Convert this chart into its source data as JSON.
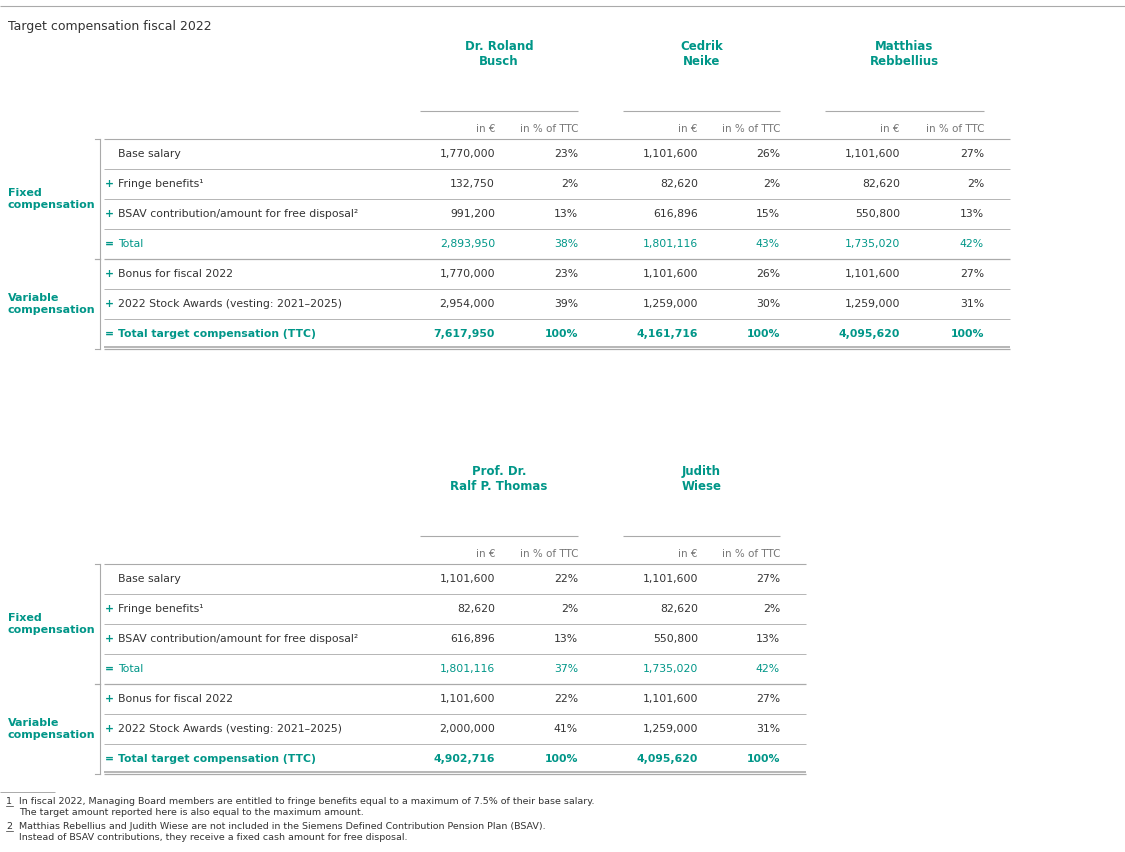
{
  "title": "Target compensation fiscal 2022",
  "teal": "#009688",
  "black": "#333333",
  "gray": "#777777",
  "bg": "#ffffff",
  "table1": {
    "header_names": [
      "Dr. Roland\nBusch",
      "Cedrik\nNeike",
      "Matthias\nRebbellius"
    ],
    "rows": [
      {
        "label": "Base salary",
        "sym": "",
        "teal": false,
        "bold": false,
        "vals": [
          "1,770,000",
          "23%",
          "1,101,600",
          "26%",
          "1,101,600",
          "27%"
        ]
      },
      {
        "label": "Fringe benefits¹",
        "sym": "+",
        "teal": false,
        "bold": false,
        "vals": [
          "132,750",
          "2%",
          "82,620",
          "2%",
          "82,620",
          "2%"
        ]
      },
      {
        "label": "BSAV contribution/amount for free disposal²",
        "sym": "+",
        "teal": false,
        "bold": false,
        "vals": [
          "991,200",
          "13%",
          "616,896",
          "15%",
          "550,800",
          "13%"
        ]
      },
      {
        "label": "Total",
        "sym": "=",
        "teal": true,
        "bold": false,
        "vals": [
          "2,893,950",
          "38%",
          "1,801,116",
          "43%",
          "1,735,020",
          "42%"
        ]
      },
      {
        "label": "Bonus for fiscal 2022",
        "sym": "+",
        "teal": false,
        "bold": false,
        "vals": [
          "1,770,000",
          "23%",
          "1,101,600",
          "26%",
          "1,101,600",
          "27%"
        ]
      },
      {
        "label": "2022 Stock Awards (vesting: 2021–2025)",
        "sym": "+",
        "teal": false,
        "bold": false,
        "vals": [
          "2,954,000",
          "39%",
          "1,259,000",
          "30%",
          "1,259,000",
          "31%"
        ]
      },
      {
        "label": "Total target compensation (TTC)",
        "sym": "=",
        "teal": true,
        "bold": true,
        "vals": [
          "7,617,950",
          "100%",
          "4,161,716",
          "100%",
          "4,095,620",
          "100%"
        ]
      }
    ]
  },
  "table2": {
    "header_names": [
      "Prof. Dr.\nRalf P. Thomas",
      "Judith\nWiese"
    ],
    "rows": [
      {
        "label": "Base salary",
        "sym": "",
        "teal": false,
        "bold": false,
        "vals": [
          "1,101,600",
          "22%",
          "1,101,600",
          "27%"
        ]
      },
      {
        "label": "Fringe benefits¹",
        "sym": "+",
        "teal": false,
        "bold": false,
        "vals": [
          "82,620",
          "2%",
          "82,620",
          "2%"
        ]
      },
      {
        "label": "BSAV contribution/amount for free disposal²",
        "sym": "+",
        "teal": false,
        "bold": false,
        "vals": [
          "616,896",
          "13%",
          "550,800",
          "13%"
        ]
      },
      {
        "label": "Total",
        "sym": "=",
        "teal": true,
        "bold": false,
        "vals": [
          "1,801,116",
          "37%",
          "1,735,020",
          "42%"
        ]
      },
      {
        "label": "Bonus for fiscal 2022",
        "sym": "+",
        "teal": false,
        "bold": false,
        "vals": [
          "1,101,600",
          "22%",
          "1,101,600",
          "27%"
        ]
      },
      {
        "label": "2022 Stock Awards (vesting: 2021–2025)",
        "sym": "+",
        "teal": false,
        "bold": false,
        "vals": [
          "2,000,000",
          "41%",
          "1,259,000",
          "31%"
        ]
      },
      {
        "label": "Total target compensation (TTC)",
        "sym": "=",
        "teal": true,
        "bold": true,
        "vals": [
          "4,902,716",
          "100%",
          "4,095,620",
          "100%"
        ]
      }
    ]
  }
}
